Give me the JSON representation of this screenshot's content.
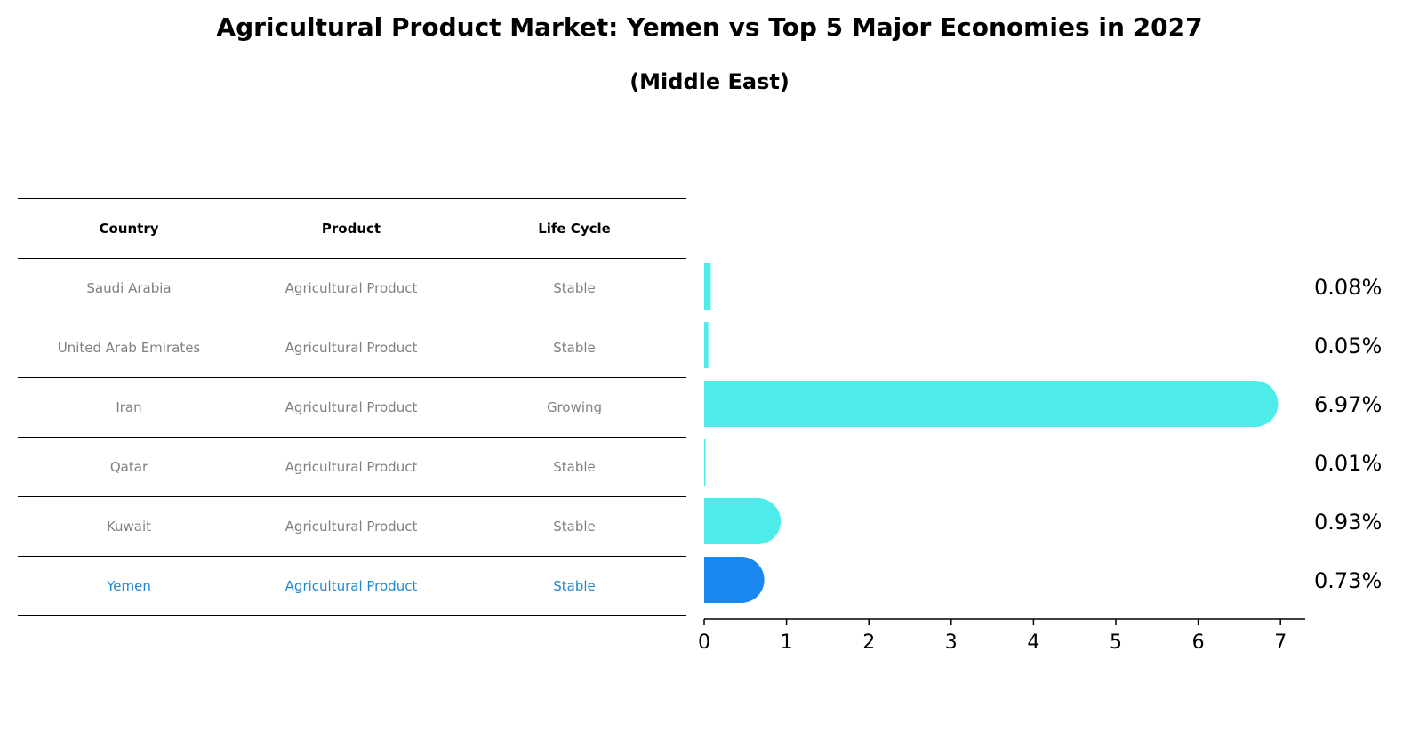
{
  "title": "Agricultural Product Market: Yemen vs Top 5 Major Economies in 2027",
  "subtitle": "(Middle East)",
  "table": {
    "headers": [
      "Country",
      "Product",
      "Life Cycle"
    ],
    "rows": [
      [
        "Saudi Arabia",
        "Agricultural Product",
        "Stable"
      ],
      [
        "United Arab Emirates",
        "Agricultural Product",
        "Stable"
      ],
      [
        "Iran",
        "Agricultural Product",
        "Growing"
      ],
      [
        "Qatar",
        "Agricultural Product",
        "Stable"
      ],
      [
        "Kuwait",
        "Agricultural Product",
        "Stable"
      ],
      [
        "Yemen",
        "Agricultural Product",
        "Stable"
      ]
    ]
  },
  "chart_data": {
    "type": "bar",
    "orientation": "horizontal",
    "title": "Agricultural Product Market: Yemen vs Top 5 Major Economies in 2027",
    "subtitle": "(Middle East)",
    "categories": [
      "Saudi Arabia",
      "United Arab Emirates",
      "Iran",
      "Qatar",
      "Kuwait",
      "Yemen"
    ],
    "values": [
      0.08,
      0.05,
      6.97,
      0.01,
      0.93,
      0.73
    ],
    "value_labels": [
      "0.08%",
      "0.05%",
      "6.97%",
      "0.01%",
      "0.93%",
      "0.73%"
    ],
    "highlight": "Yemen",
    "xlim": [
      0,
      7.3
    ],
    "xticks": [
      0,
      1,
      2,
      3,
      4,
      5,
      6,
      7
    ],
    "xlabel": "",
    "ylabel": "",
    "colors": {
      "default": "#4deceb",
      "highlight": "#1a87f0",
      "highlight_text": "#1e88d2"
    }
  }
}
